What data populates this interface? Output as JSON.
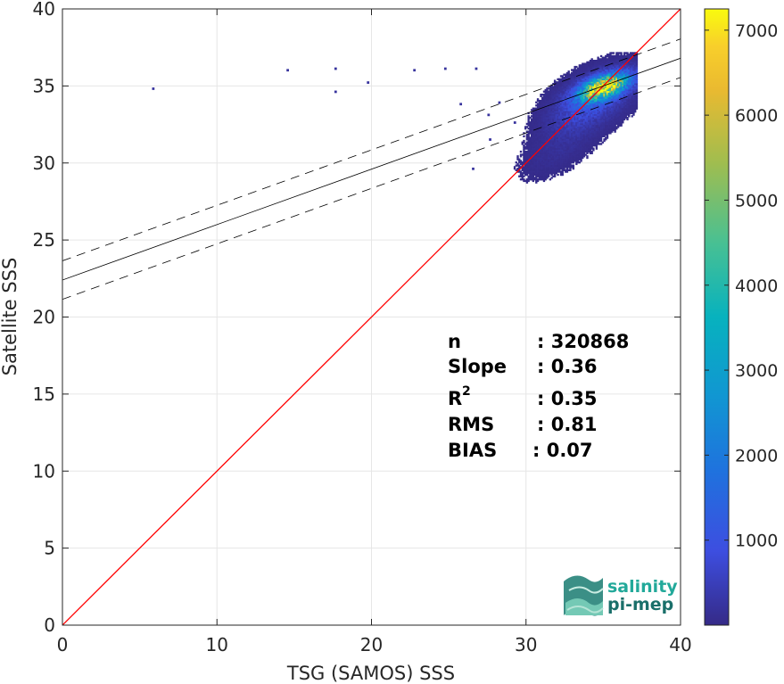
{
  "chart_data": {
    "type": "heatmap",
    "xlabel": "TSG (SAMOS) SSS",
    "ylabel": "Satellite SSS",
    "xlim": [
      0,
      40
    ],
    "ylim": [
      0,
      40
    ],
    "xticks": [
      0,
      10,
      20,
      30,
      40
    ],
    "yticks": [
      0,
      5,
      10,
      15,
      20,
      25,
      30,
      35,
      40
    ],
    "grid": true,
    "colormap": "parula",
    "colorbar": {
      "ticks": [
        1000,
        2000,
        3000,
        4000,
        5000,
        6000,
        7000
      ],
      "range": [
        0,
        7250
      ]
    },
    "identity_line": {
      "slope": 1,
      "intercept": 0,
      "color": "#ff0000"
    },
    "regression_line": {
      "slope": 0.36,
      "intercept": 22.4,
      "color": "#000000"
    },
    "confidence_band": {
      "offset": 1.25,
      "style": "dashed"
    },
    "density_clusters": [
      {
        "x": 35.0,
        "y": 34.9,
        "sx": 0.9,
        "sy": 0.5,
        "peak": 7200
      },
      {
        "x": 34.4,
        "y": 34.2,
        "sx": 1.4,
        "sy": 1.0,
        "peak": 900
      },
      {
        "x": 33.2,
        "y": 32.8,
        "sx": 1.3,
        "sy": 1.3,
        "peak": 250
      },
      {
        "x": 31.5,
        "y": 30.4,
        "sx": 1.2,
        "sy": 0.9,
        "peak": 80
      }
    ],
    "outliers": [
      {
        "x": 5.8,
        "y": 34.7
      },
      {
        "x": 14.5,
        "y": 35.9
      },
      {
        "x": 17.6,
        "y": 36.0
      },
      {
        "x": 17.6,
        "y": 34.5
      },
      {
        "x": 19.7,
        "y": 35.1
      },
      {
        "x": 22.7,
        "y": 35.9
      },
      {
        "x": 24.7,
        "y": 36.0
      },
      {
        "x": 26.7,
        "y": 36.0
      },
      {
        "x": 25.7,
        "y": 33.7
      },
      {
        "x": 27.5,
        "y": 33.0
      },
      {
        "x": 26.5,
        "y": 29.5
      },
      {
        "x": 27.6,
        "y": 31.4
      },
      {
        "x": 28.2,
        "y": 33.8
      },
      {
        "x": 29.2,
        "y": 32.5
      }
    ]
  },
  "stats": {
    "n_label": "n",
    "n_value": ": 320868",
    "slope_label": "Slope",
    "slope_value": ": 0.36",
    "r2_label": "R",
    "r2_sup": "2",
    "r2_value": ": 0.35",
    "rms_label": "RMS",
    "rms_value": ": 0.81",
    "bias_label": "BIAS",
    "bias_value": ": 0.07"
  },
  "logo": {
    "line1": "salinity",
    "line2": "pi-mep",
    "color1": "#22a99a",
    "color2": "#1a6f6a"
  }
}
